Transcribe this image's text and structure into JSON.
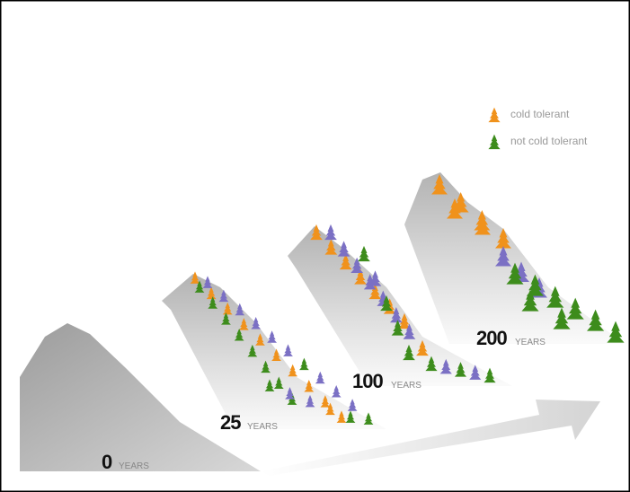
{
  "legend": [
    {
      "label": "cold tolerant"
    },
    {
      "label": "not cold tolerant"
    }
  ],
  "stages": [
    {
      "number": "0",
      "unit": "YEARS"
    },
    {
      "number": "25",
      "unit": "YEARS"
    },
    {
      "number": "100",
      "unit": "YEARS"
    },
    {
      "number": "200",
      "unit": "YEARS"
    }
  ]
}
